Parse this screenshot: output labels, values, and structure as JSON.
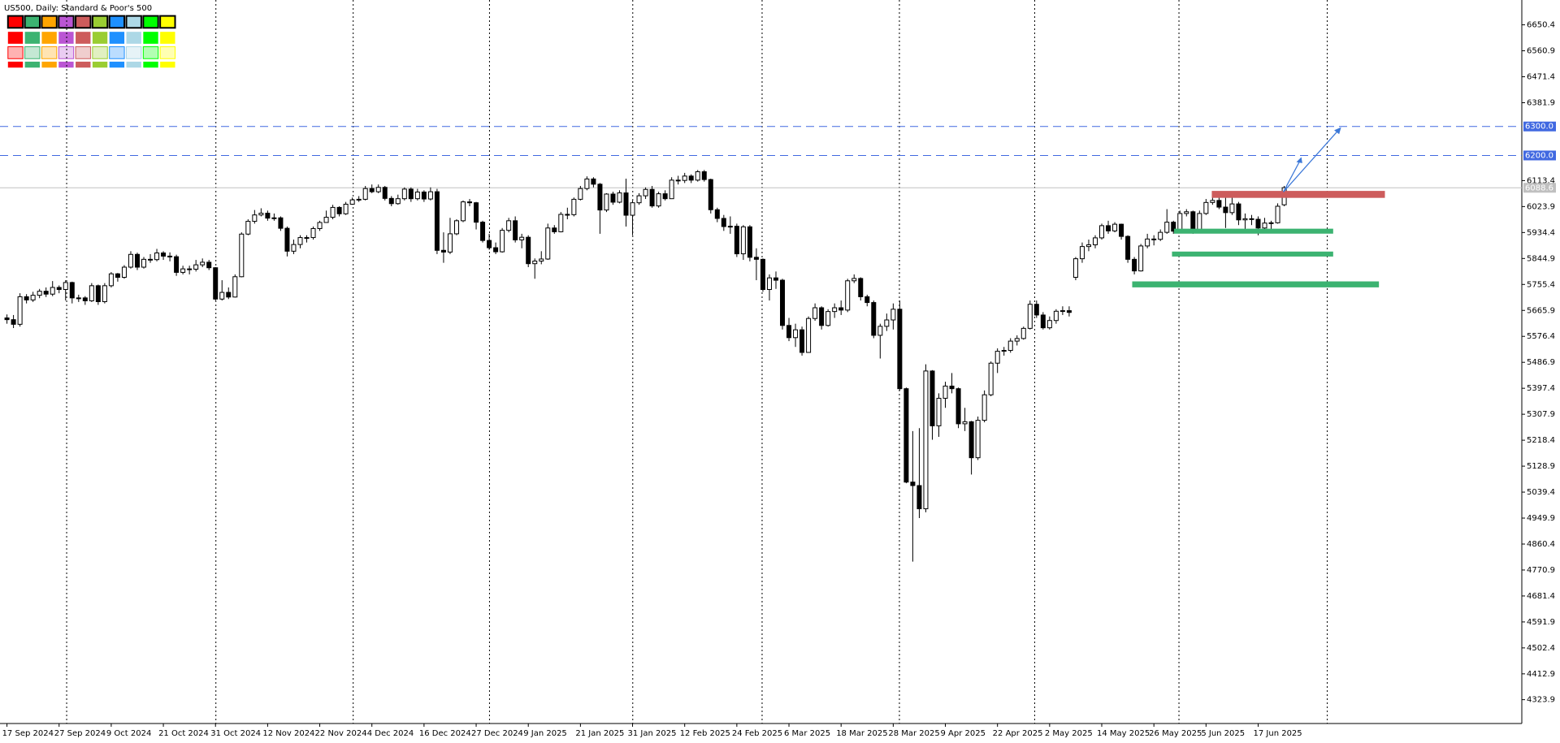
{
  "chart_data": {
    "type": "candlestick",
    "title": "US500, Daily:  Standard & Poor's 500",
    "categories": [
      "17 Sep 2024",
      null,
      null,
      null,
      null,
      null,
      null,
      null,
      "27 Sep 2024",
      null,
      null,
      null,
      null,
      null,
      null,
      null,
      "9 Oct 2024",
      null,
      null,
      null,
      null,
      null,
      null,
      null,
      "21 Oct 2024",
      null,
      null,
      null,
      null,
      null,
      null,
      null,
      "31 Oct 2024",
      null,
      null,
      null,
      null,
      null,
      null,
      null,
      "12 Nov 2024",
      null,
      null,
      null,
      null,
      null,
      null,
      null,
      "22 Nov 2024",
      null,
      null,
      null,
      null,
      null,
      null,
      null,
      "4 Dec 2024",
      null,
      null,
      null,
      null,
      null,
      null,
      null,
      "16 Dec 2024",
      null,
      null,
      null,
      null,
      null,
      null,
      null,
      "27 Dec 2024",
      null,
      null,
      null,
      null,
      null,
      null,
      null,
      "9 Jan 2025",
      null,
      null,
      null,
      null,
      null,
      null,
      null,
      "21 Jan 2025",
      null,
      null,
      null,
      null,
      null,
      null,
      null,
      "31 Jan 2025",
      null,
      null,
      null,
      null,
      null,
      null,
      null,
      "12 Feb 2025",
      null,
      null,
      null,
      null,
      null,
      null,
      null,
      "24 Feb 2025",
      null,
      null,
      null,
      null,
      null,
      null,
      null,
      "6 Mar 2025",
      null,
      null,
      null,
      null,
      null,
      null,
      null,
      "18 Mar 2025",
      null,
      null,
      null,
      null,
      null,
      null,
      null,
      "28 Mar 2025",
      null,
      null,
      null,
      null,
      null,
      null,
      null,
      "9 Apr 2025",
      null,
      null,
      null,
      null,
      null,
      null,
      null,
      "22 Apr 2025",
      null,
      null,
      null,
      null,
      null,
      null,
      null,
      "2 May 2025",
      null,
      null,
      null,
      null,
      null,
      null,
      null,
      "14 May 2025",
      null,
      null,
      null,
      null,
      null,
      null,
      null,
      "26 May 2025",
      null,
      null,
      null,
      null,
      null,
      null,
      null,
      "5 Jun 2025",
      null,
      null,
      null,
      null,
      null,
      null,
      null,
      "17 Jun 2025",
      null,
      null,
      null,
      null
    ],
    "open": [
      5640,
      5634,
      5618,
      5713,
      5702,
      5718,
      5732,
      5722,
      5745,
      5738,
      5762,
      5709,
      5709,
      5699,
      5751,
      5696,
      5751,
      5792,
      5780,
      5815,
      5859,
      5815,
      5842,
      5841,
      5864,
      5853,
      5851,
      5797,
      5809,
      5808,
      5823,
      5832,
      5813,
      5705,
      5728,
      5712,
      5782,
      5929,
      5973,
      5995,
      6001,
      5984,
      5985,
      5949,
      5870,
      5893,
      5917,
      5917,
      5948,
      5969,
      5987,
      6021,
      5999,
      6032,
      6047,
      6049,
      6086,
      6075,
      6090,
      6052,
      6034,
      6051,
      6084,
      6051,
      6074,
      6050,
      6075,
      5873,
      5867,
      5930,
      5975,
      6040,
      6037,
      5970,
      5907,
      5882,
      5868,
      5942,
      5975,
      5909,
      5918,
      5827,
      5836,
      5843,
      5950,
      5937,
      5997,
      5996,
      6049,
      6086,
      6119,
      6101,
      6012,
      6067,
      6039,
      6071,
      5994,
      6037,
      6061,
      6083,
      6026,
      6068,
      6051,
      6115,
      6114,
      6129,
      6115,
      6144,
      6117,
      6013,
      5983,
      5955,
      5956,
      5861,
      5954,
      5849,
      5842,
      5738,
      5778,
      5770,
      5614,
      5572,
      5599,
      5521,
      5638,
      5675,
      5614,
      5662,
      5675,
      5667,
      5768,
      5776,
      5713,
      5693,
      5580,
      5611,
      5633,
      5670,
      5396,
      5074,
      5062,
      4982,
      5457,
      5268,
      5363,
      5405,
      5396,
      5275,
      5282,
      5158,
      5287,
      5375,
      5484,
      5525,
      5528,
      5560,
      5569,
      5604,
      5687,
      5650,
      5606,
      5631,
      5663,
      5665,
      5780,
      5844,
      5886,
      5892,
      5916,
      5958,
      5940,
      5963,
      5921,
      5842,
      5802,
      5888,
      5912,
      5911,
      5935,
      5970,
      5939,
      6000,
      6006,
      5939,
      6000,
      6038,
      6045,
      6022,
      6003,
      6033,
      5978,
      5982,
      5980,
      5950,
      5967,
      5968,
      6030
    ],
    "high": [
      5652,
      5650,
      5725,
      5722,
      5730,
      5740,
      5745,
      5767,
      5752,
      5770,
      5765,
      5720,
      5715,
      5760,
      5755,
      5760,
      5798,
      5795,
      5822,
      5870,
      5865,
      5850,
      5860,
      5878,
      5870,
      5866,
      5858,
      5820,
      5820,
      5840,
      5845,
      5840,
      5815,
      5770,
      5745,
      5790,
      5935,
      5980,
      6012,
      6018,
      6010,
      6000,
      5990,
      5955,
      5910,
      5925,
      5925,
      5955,
      5975,
      6010,
      6030,
      6025,
      6040,
      6055,
      6060,
      6095,
      6100,
      6100,
      6095,
      6060,
      6065,
      6090,
      6090,
      6085,
      6080,
      6090,
      6085,
      5935,
      5985,
      5980,
      6045,
      6050,
      6040,
      5975,
      5930,
      5900,
      5950,
      5985,
      5990,
      5930,
      5925,
      5845,
      5870,
      5965,
      5960,
      6005,
      6020,
      6055,
      6095,
      6128,
      6125,
      6105,
      6070,
      6075,
      6080,
      6120,
      6045,
      6070,
      6090,
      6095,
      6075,
      6080,
      6125,
      6130,
      6140,
      6135,
      6150,
      6150,
      6120,
      6020,
      5995,
      5990,
      5965,
      5960,
      5960,
      5880,
      5845,
      5790,
      5800,
      5775,
      5640,
      5620,
      5610,
      5645,
      5690,
      5680,
      5670,
      5690,
      5700,
      5775,
      5790,
      5780,
      5720,
      5700,
      5620,
      5655,
      5690,
      5700,
      5400,
      5250,
      5260,
      5480,
      5460,
      5380,
      5420,
      5450,
      5400,
      5330,
      5285,
      5300,
      5390,
      5490,
      5535,
      5540,
      5570,
      5580,
      5610,
      5700,
      5700,
      5660,
      5645,
      5670,
      5680,
      5680,
      5850,
      5900,
      5910,
      5925,
      5965,
      5975,
      5970,
      5965,
      5925,
      5850,
      5895,
      5930,
      5925,
      5945,
      6015,
      5975,
      6010,
      6015,
      6010,
      6010,
      6050,
      6060,
      6065,
      6055,
      6060,
      6040,
      6000,
      5995,
      5990,
      5985,
      5975,
      6035,
      6095
    ],
    "low": [
      5620,
      5605,
      5610,
      5690,
      5695,
      5708,
      5712,
      5715,
      5725,
      5700,
      5690,
      5695,
      5685,
      5695,
      5685,
      5690,
      5745,
      5765,
      5775,
      5810,
      5805,
      5810,
      5830,
      5835,
      5840,
      5835,
      5785,
      5790,
      5790,
      5800,
      5815,
      5805,
      5700,
      5700,
      5705,
      5710,
      5780,
      5925,
      5965,
      5990,
      5975,
      5975,
      5940,
      5852,
      5860,
      5880,
      5900,
      5910,
      5940,
      5970,
      5980,
      5990,
      5995,
      6030,
      6040,
      6045,
      6070,
      6070,
      6045,
      6025,
      6030,
      6045,
      6040,
      6045,
      6040,
      6045,
      5860,
      5830,
      5860,
      5925,
      5970,
      6025,
      5945,
      5900,
      5875,
      5860,
      5865,
      5935,
      5900,
      5880,
      5815,
      5775,
      5825,
      5840,
      5930,
      5935,
      5980,
      5990,
      6045,
      6080,
      6090,
      5930,
      6005,
      6030,
      6035,
      5955,
      5925,
      6030,
      6050,
      6020,
      6020,
      6045,
      6050,
      6100,
      6105,
      6105,
      6110,
      6110,
      6000,
      5970,
      5940,
      5930,
      5850,
      5840,
      5835,
      5770,
      5730,
      5700,
      5740,
      5600,
      5560,
      5540,
      5510,
      5520,
      5630,
      5600,
      5610,
      5640,
      5650,
      5660,
      5760,
      5700,
      5680,
      5570,
      5500,
      5595,
      5600,
      5390,
      5070,
      4800,
      4950,
      4970,
      5220,
      5230,
      5330,
      5380,
      5260,
      5250,
      5100,
      5150,
      5280,
      5370,
      5450,
      5510,
      5520,
      5545,
      5565,
      5600,
      5640,
      5600,
      5600,
      5620,
      5650,
      5645,
      5770,
      5830,
      5870,
      5880,
      5910,
      5930,
      5935,
      5910,
      5830,
      5790,
      5800,
      5880,
      5890,
      5905,
      5930,
      5930,
      5935,
      5990,
      5930,
      5935,
      5995,
      6030,
      6015,
      5950,
      5995,
      5960,
      5945,
      5960,
      5925,
      5940,
      5940,
      5965,
      6025
    ],
    "close": [
      5634,
      5618,
      5713,
      5702,
      5718,
      5732,
      5722,
      5745,
      5738,
      5762,
      5709,
      5709,
      5699,
      5751,
      5696,
      5751,
      5792,
      5780,
      5815,
      5859,
      5815,
      5842,
      5841,
      5864,
      5853,
      5851,
      5797,
      5809,
      5808,
      5823,
      5832,
      5813,
      5705,
      5728,
      5712,
      5782,
      5929,
      5973,
      5995,
      6001,
      5984,
      5985,
      5949,
      5870,
      5893,
      5917,
      5917,
      5948,
      5969,
      5987,
      6021,
      5999,
      6032,
      6047,
      6049,
      6086,
      6075,
      6090,
      6052,
      6034,
      6051,
      6084,
      6051,
      6074,
      6050,
      6075,
      5873,
      5867,
      5930,
      5975,
      6040,
      6037,
      5970,
      5907,
      5882,
      5868,
      5942,
      5975,
      5909,
      5918,
      5827,
      5836,
      5843,
      5950,
      5937,
      5997,
      5996,
      6049,
      6086,
      6119,
      6101,
      6012,
      6067,
      6039,
      6071,
      5994,
      6037,
      6061,
      6083,
      6026,
      6068,
      6051,
      6115,
      6114,
      6129,
      6115,
      6144,
      6117,
      6013,
      5983,
      5955,
      5956,
      5861,
      5954,
      5849,
      5842,
      5738,
      5778,
      5770,
      5614,
      5572,
      5599,
      5521,
      5638,
      5675,
      5614,
      5662,
      5675,
      5667,
      5768,
      5776,
      5713,
      5693,
      5580,
      5611,
      5633,
      5670,
      5396,
      5074,
      5062,
      4982,
      5457,
      5268,
      5363,
      5405,
      5396,
      5275,
      5282,
      5158,
      5287,
      5375,
      5484,
      5525,
      5528,
      5560,
      5569,
      5604,
      5687,
      5650,
      5606,
      5631,
      5663,
      5665,
      5659,
      5844,
      5886,
      5892,
      5916,
      5958,
      5940,
      5963,
      5921,
      5842,
      5802,
      5888,
      5912,
      5911,
      5935,
      5970,
      5939,
      6000,
      6006,
      5939,
      6000,
      6038,
      6045,
      6022,
      6003,
      6033,
      5978,
      5982,
      5980,
      5950,
      5967,
      5968,
      6025,
      6089
    ],
    "up_color": "#ffffff",
    "down_color": "#000000",
    "ylim": [
      4241.7,
      6736.0
    ],
    "yticks": [
      6650.4,
      6560.9,
      6471.4,
      6381.9,
      6113.4,
      6023.9,
      5934.4,
      5844.9,
      5755.4,
      5665.9,
      5576.4,
      5486.9,
      5397.4,
      5307.9,
      5218.4,
      5128.9,
      5039.4,
      4949.9,
      4860.4,
      4770.9,
      4681.4,
      4591.9,
      4502.4,
      4412.9,
      4323.9
    ],
    "hlines": [
      {
        "value": 6300,
        "label": "6300.0",
        "color": "#4169e1"
      },
      {
        "value": 6200,
        "label": "6200.0",
        "color": "#4169e1"
      }
    ],
    "last_price": 6088.6
  }
}
